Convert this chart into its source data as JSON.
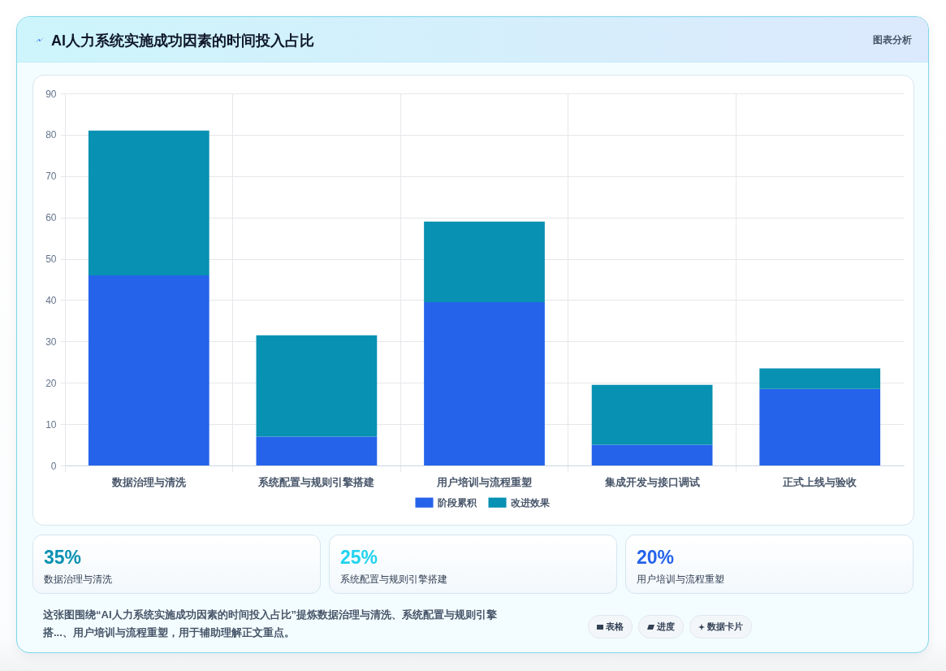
{
  "chart_data": {
    "type": "bar",
    "title": "AI人力系统实施成功因素的时间投入占比",
    "categories": [
      "数据治理与清洗",
      "系统配置与规则引擎搭建",
      "用户培训与流程重塑",
      "集成开发与接口调试",
      "正式上线与验收"
    ],
    "series": [
      {
        "name": "阶段累积",
        "color": "#2563eb",
        "values": [
          46,
          7,
          39.5,
          5,
          18.5
        ]
      },
      {
        "name": "改进效果",
        "color": "#0891b2",
        "values": [
          35,
          24.5,
          19.5,
          14.5,
          5
        ]
      }
    ],
    "stacked": true,
    "ylim": [
      0,
      90
    ],
    "yticks": [
      0,
      10,
      20,
      30,
      40,
      50,
      60,
      70,
      80,
      90
    ],
    "grid": true,
    "legend": "bottom",
    "annotations": [
      "图表分析",
      "35%",
      "数据治理与清洗",
      "25%",
      "系统配置与规则引擎搭建",
      "20%",
      "用户培训与流程重塑",
      "这张图围绕“AI人力系统实施成功因素的时间投入占比”提炼数据治理与清洗、系统配置与规则引擎搭...、用户培训与流程重塑，用于辅助理解正文重点。",
      "表格",
      "进度",
      "数据卡片"
    ]
  }
}
